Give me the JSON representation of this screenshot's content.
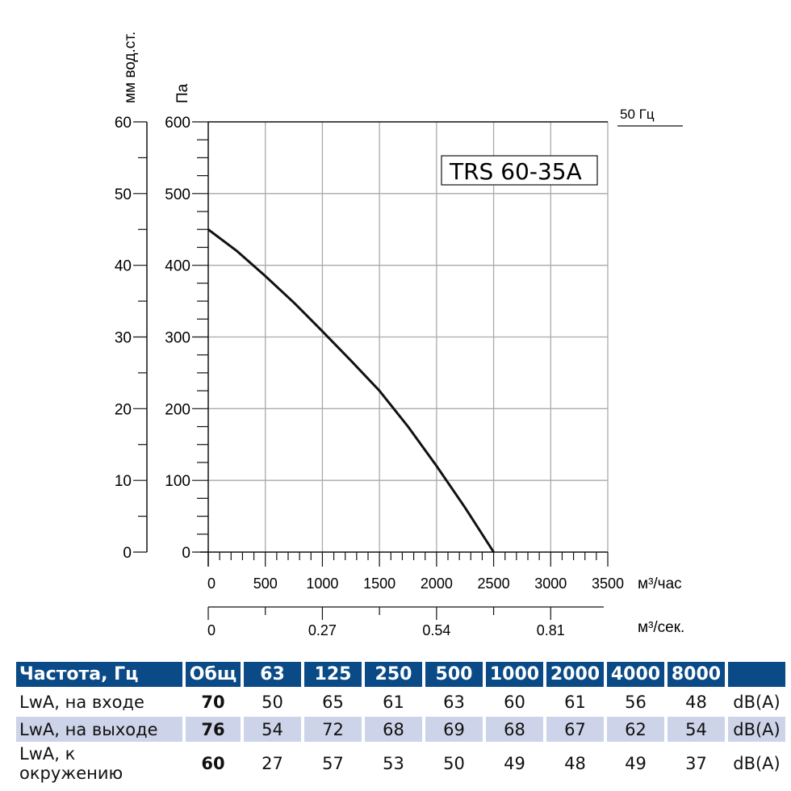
{
  "chart_data": {
    "type": "line",
    "title": "TRS 60-35A",
    "frequency_label": "50 Гц",
    "xlabel": "м³/час",
    "x2label": "м³/сек.",
    "ylabel": "Па",
    "y2label": "мм вод.ст.",
    "xlim": [
      0,
      3500
    ],
    "ylim": [
      0,
      600
    ],
    "y2lim": [
      0,
      60
    ],
    "grid": true,
    "x_ticks": [
      "0",
      "500",
      "1000",
      "1500",
      "2000",
      "2500",
      "3000",
      "3500"
    ],
    "y_ticks": [
      "0",
      "100",
      "200",
      "300",
      "400",
      "500",
      "600"
    ],
    "y2_ticks": [
      "0",
      "10",
      "20",
      "30",
      "40",
      "50",
      "60"
    ],
    "x2_ticks": [
      "0",
      "0.27",
      "0.54",
      "0.81"
    ],
    "series": [
      {
        "x": [
          0,
          250,
          500,
          750,
          1000,
          1250,
          1500,
          1750,
          2000,
          2250,
          2500
        ],
        "y": [
          450,
          420,
          385,
          348,
          308,
          267,
          225,
          175,
          120,
          62,
          0
        ]
      }
    ],
    "curve_color": "#111111"
  },
  "table": {
    "header": [
      "Частота, Гц",
      "Общ",
      "63",
      "125",
      "250",
      "500",
      "1000",
      "2000",
      "4000",
      "8000",
      ""
    ],
    "rows": [
      {
        "label": "LwA, на входе",
        "total": "70",
        "values": [
          "50",
          "65",
          "61",
          "63",
          "60",
          "61",
          "56",
          "48"
        ],
        "unit": "dB(A)"
      },
      {
        "label": "LwA, на выходе",
        "total": "76",
        "values": [
          "54",
          "72",
          "68",
          "69",
          "68",
          "67",
          "62",
          "54"
        ],
        "unit": "dB(A)"
      },
      {
        "label": "LwA, к окружению",
        "total": "60",
        "values": [
          "27",
          "57",
          "53",
          "50",
          "49",
          "48",
          "49",
          "37"
        ],
        "unit": "dB(A)"
      }
    ],
    "header_color": "#0a4a86",
    "alt_row_color": "#cdd3e8"
  }
}
